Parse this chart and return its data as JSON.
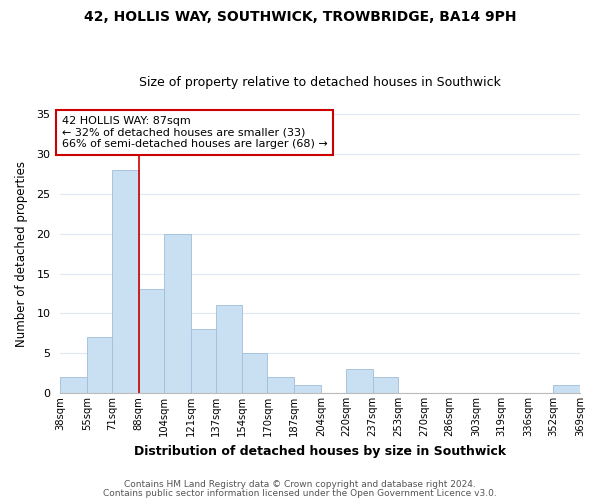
{
  "title1": "42, HOLLIS WAY, SOUTHWICK, TROWBRIDGE, BA14 9PH",
  "title2": "Size of property relative to detached houses in Southwick",
  "xlabel": "Distribution of detached houses by size in Southwick",
  "ylabel": "Number of detached properties",
  "bin_labels": [
    "38sqm",
    "55sqm",
    "71sqm",
    "88sqm",
    "104sqm",
    "121sqm",
    "137sqm",
    "154sqm",
    "170sqm",
    "187sqm",
    "204sqm",
    "220sqm",
    "237sqm",
    "253sqm",
    "270sqm",
    "286sqm",
    "303sqm",
    "319sqm",
    "336sqm",
    "352sqm",
    "369sqm"
  ],
  "bar_heights": [
    2,
    7,
    28,
    13,
    20,
    8,
    11,
    5,
    2,
    1,
    0,
    3,
    2,
    0,
    0,
    0,
    0,
    0,
    0,
    1
  ],
  "bar_color": "#c9dff2",
  "bar_edge_color": "#a0bdd8",
  "subject_line_color": "#cc0000",
  "annotation_title": "42 HOLLIS WAY: 87sqm",
  "annotation_line1": "← 32% of detached houses are smaller (33)",
  "annotation_line2": "66% of semi-detached houses are larger (68) →",
  "annotation_box_color": "#ffffff",
  "annotation_box_edge": "#cc0000",
  "ylim": [
    0,
    35
  ],
  "yticks": [
    0,
    5,
    10,
    15,
    20,
    25,
    30,
    35
  ],
  "footer1": "Contains HM Land Registry data © Crown copyright and database right 2024.",
  "footer2": "Contains public sector information licensed under the Open Government Licence v3.0.",
  "background_color": "#ffffff",
  "grid_color": "#dce9f5"
}
